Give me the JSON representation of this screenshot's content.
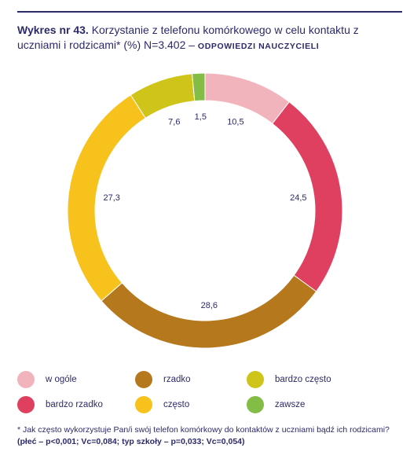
{
  "title": {
    "prefix": "Wykres nr 43.",
    "text": "Korzystanie z telefonu komórkowego w celu kontaktu z uczniami i rodzicami* (%) N=3.402 –",
    "suffix": "ODPOWIEDZI NAUCZYCIELI"
  },
  "chart_data": {
    "type": "pie",
    "subtype": "donut",
    "categories": [
      "w ogóle",
      "bardzo rzadko",
      "rzadko",
      "często",
      "bardzo często",
      "zawsze"
    ],
    "values": [
      10.5,
      24.5,
      28.6,
      27.3,
      7.6,
      1.5
    ],
    "labels": [
      "10,5",
      "24,5",
      "28,6",
      "27,3",
      "7,6",
      "1,5"
    ],
    "colors": [
      "#f1b4bd",
      "#e0405f",
      "#b5781d",
      "#f7c21c",
      "#cfc51a",
      "#84bd45"
    ],
    "legend_placement": "bottom"
  },
  "legend": [
    {
      "label": "w ogóle",
      "color": "#f1b4bd"
    },
    {
      "label": "rzadko",
      "color": "#b5781d"
    },
    {
      "label": "bardzo często",
      "color": "#cfc51a"
    },
    {
      "label": "bardzo rzadko",
      "color": "#e0405f"
    },
    {
      "label": "często",
      "color": "#f7c21c"
    },
    {
      "label": "zawsze",
      "color": "#84bd45"
    }
  ],
  "footnote": {
    "text": "* Jak często wykorzystuje Pan/i swój telefon komórkowy do kontaktów z uczniami bądź ich rodzicami?",
    "bold": "(płeć – p<0,001; Vc=0,084; typ szkoły – p=0,033; Vc=0,054)"
  }
}
